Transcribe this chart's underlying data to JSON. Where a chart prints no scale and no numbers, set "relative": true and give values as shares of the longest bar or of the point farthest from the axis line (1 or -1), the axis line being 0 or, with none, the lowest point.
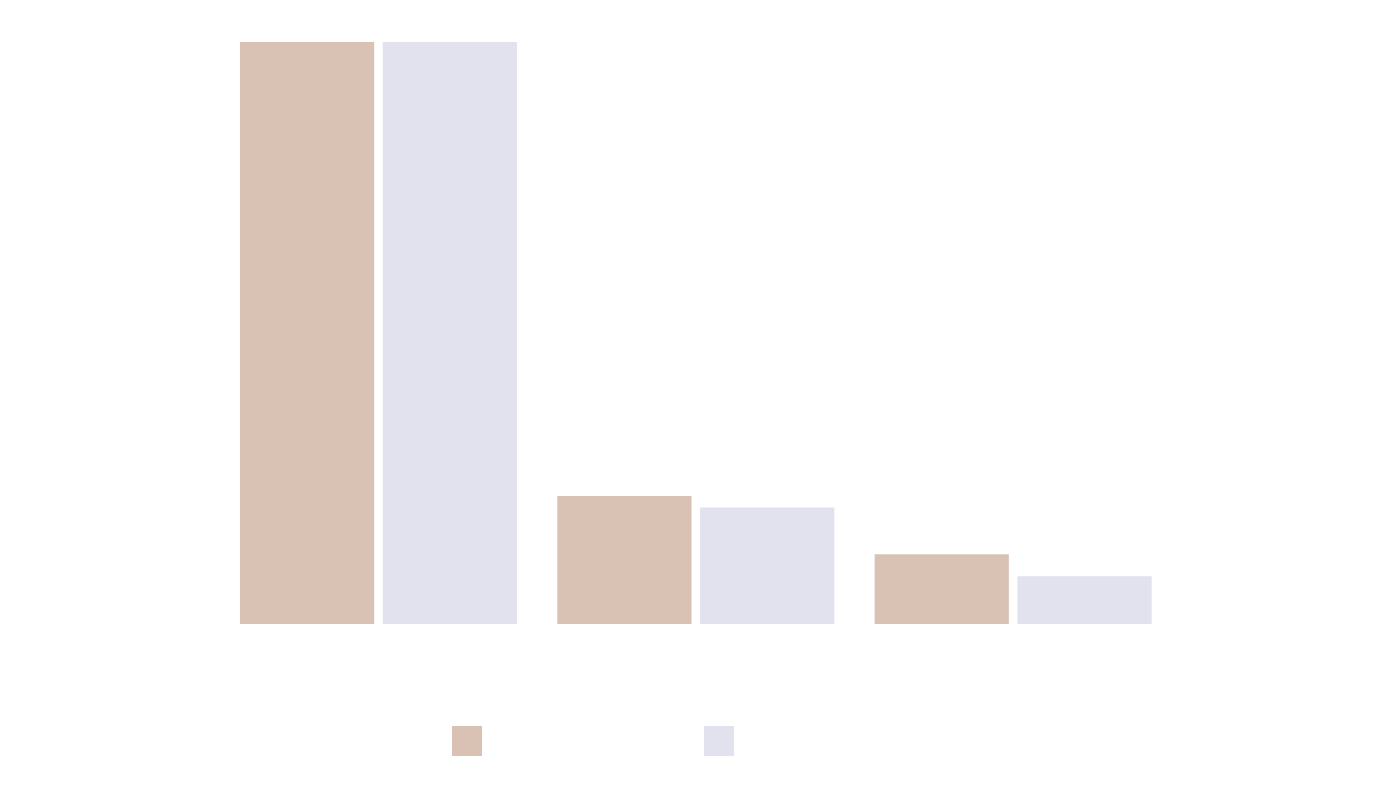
{
  "chart_data": {
    "type": "bar",
    "relative": true,
    "categories": [
      null,
      null,
      null
    ],
    "series": [
      {
        "color": "#d9c2b4",
        "values": [
          1,
          0.22,
          0.12
        ]
      },
      {
        "color": "#e2e1ee",
        "values": [
          1,
          0.2,
          0.082
        ]
      }
    ],
    "grid": false
  }
}
